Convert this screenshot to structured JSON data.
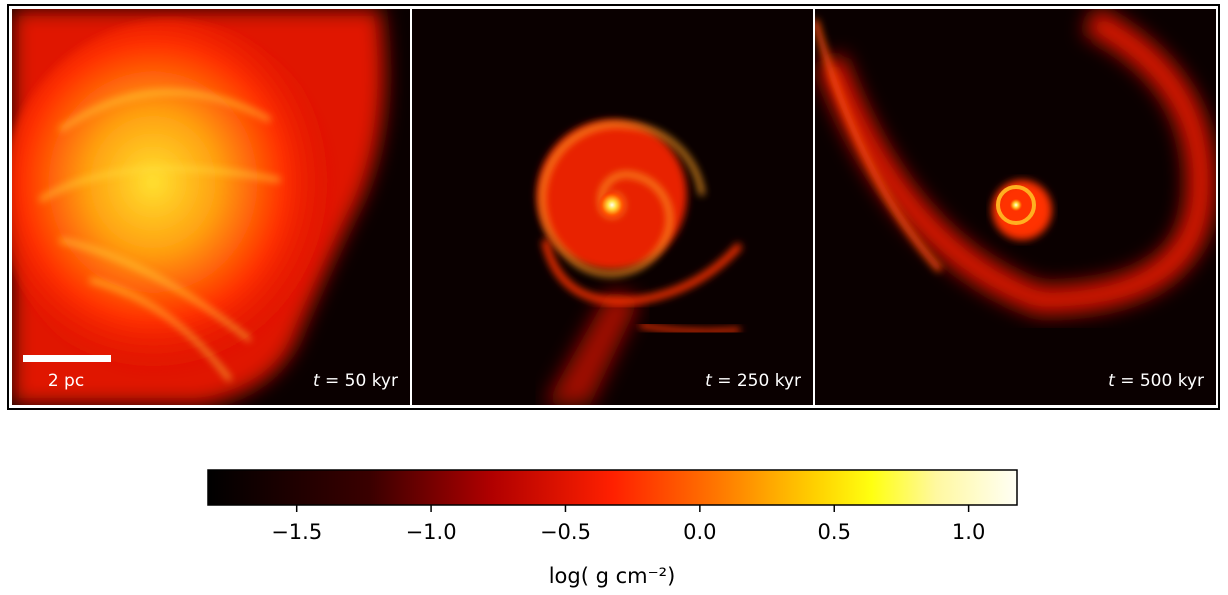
{
  "figure": {
    "panels": [
      {
        "label_var": "t",
        "label_rest": " = 50 kyr",
        "scale_bar": "2 pc"
      },
      {
        "label_var": "t",
        "label_rest": " = 250 kyr"
      },
      {
        "label_var": "t",
        "label_rest": " = 500 kyr"
      }
    ],
    "colorbar": {
      "label": "log( g cm⁻²)",
      "lim": [
        -1.83,
        1.18
      ],
      "ticks": [
        {
          "value": -1.5,
          "label": "−1.5"
        },
        {
          "value": -1.0,
          "label": "−1.0"
        },
        {
          "value": -0.5,
          "label": "−0.5"
        },
        {
          "value": 0,
          "label": "0.0"
        },
        0.5,
        {
          "value": 1.0,
          "label": "1.0"
        }
      ]
    }
  }
}
